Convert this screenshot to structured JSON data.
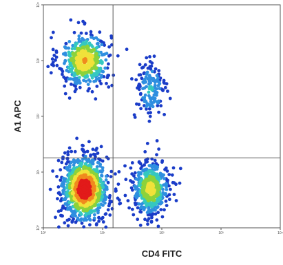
{
  "chart_data": {
    "type": "scatter",
    "title": "",
    "xlabel": "CD4 FITC",
    "ylabel": "A1 APC",
    "x_scale": "log",
    "y_scale": "log",
    "xlim": [
      1,
      10000
    ],
    "ylim": [
      1,
      10000
    ],
    "x_ticks": [
      "10⁰",
      "10¹",
      "10²",
      "10³",
      "10⁴"
    ],
    "y_ticks": [
      "10⁰",
      "10¹",
      "10²",
      "10³",
      "10⁴"
    ],
    "x_tick_values": [
      1,
      10,
      100,
      1000,
      10000
    ],
    "y_tick_values": [
      1,
      10,
      100,
      1000,
      10000
    ],
    "quadrant_gate": {
      "x": 15,
      "y": 18
    },
    "grid": false,
    "legend": "none",
    "density_colors": [
      "#1a3cc8",
      "#2f8fe0",
      "#35c8c0",
      "#8cd23a",
      "#f0e23a",
      "#f08a1e",
      "#e21a1a"
    ],
    "populations": [
      {
        "name": "",
        "center": [
          5.0,
          1000
        ],
        "spread": [
          0.22,
          0.26
        ],
        "count": 420,
        "peak": 0.72
      },
      {
        "name": "",
        "center": [
          5.0,
          5.0
        ],
        "spread": [
          0.2,
          0.3
        ],
        "count": 900,
        "peak": 1.0
      },
      {
        "name": "",
        "center": [
          65,
          5.0
        ],
        "spread": [
          0.16,
          0.26
        ],
        "count": 480,
        "peak": 0.62
      },
      {
        "name": "",
        "center": [
          65,
          300
        ],
        "spread": [
          0.14,
          0.28
        ],
        "count": 150,
        "peak": 0.3
      }
    ]
  }
}
